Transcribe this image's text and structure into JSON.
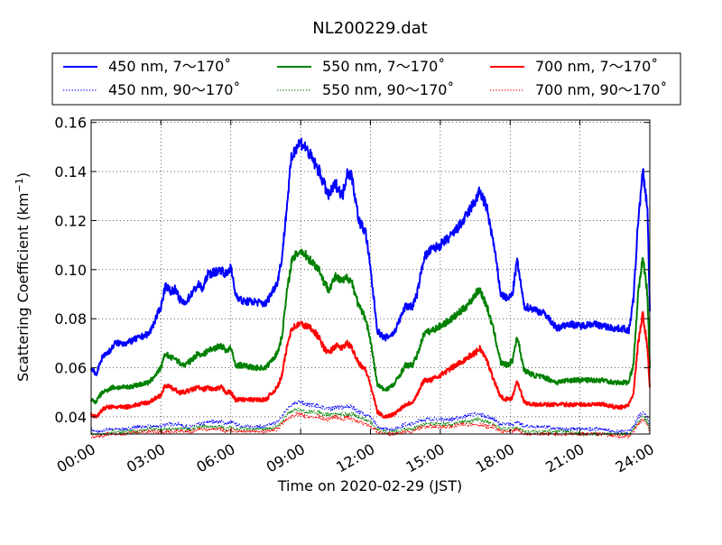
{
  "chart_data": {
    "type": "line",
    "title": "NL200229.dat",
    "xlabel": "Time on 2020-02-29 (JST)",
    "ylabel_main": "Scattering Coefficient (km",
    "ylabel_sup": "−1",
    "ylabel_close": ")",
    "xlim": [
      "00:00",
      "24:00"
    ],
    "ylim": [
      0.033,
      0.161
    ],
    "x_ticks": [
      "00:00",
      "03:00",
      "06:00",
      "09:00",
      "12:00",
      "15:00",
      "18:00",
      "21:00",
      "24:00"
    ],
    "y_ticks": [
      "0.04",
      "0.06",
      "0.08",
      "0.10",
      "0.12",
      "0.14",
      "0.16"
    ],
    "grid": true,
    "legend_position": "top, above plot",
    "x_hours": [
      0.0,
      0.2,
      0.4,
      0.5,
      0.7,
      0.9,
      1.0,
      1.5,
      2.0,
      2.5,
      3.0,
      3.2,
      3.4,
      3.6,
      3.8,
      4.0,
      4.3,
      4.6,
      4.8,
      5.0,
      5.3,
      5.6,
      5.8,
      6.0,
      6.2,
      6.5,
      7.0,
      7.5,
      8.0,
      8.2,
      8.4,
      8.6,
      8.8,
      9.0,
      9.2,
      9.5,
      9.8,
      10.0,
      10.2,
      10.5,
      10.8,
      11.0,
      11.2,
      11.5,
      11.8,
      12.0,
      12.3,
      12.6,
      13.0,
      13.5,
      13.8,
      14.0,
      14.3,
      14.6,
      15.0,
      15.5,
      16.0,
      16.3,
      16.5,
      16.7,
      17.0,
      17.3,
      17.6,
      17.9,
      18.1,
      18.3,
      18.6,
      19.0,
      19.5,
      20.0,
      20.5,
      21.0,
      21.5,
      22.0,
      22.5,
      22.9,
      23.1,
      23.3,
      23.5,
      23.7,
      23.9,
      24.0
    ],
    "series": [
      {
        "name": "450 nm, 7～170˚",
        "color": "#0000ff",
        "style": "solid",
        "values": [
          0.06,
          0.057,
          0.062,
          0.065,
          0.066,
          0.068,
          0.07,
          0.07,
          0.072,
          0.074,
          0.085,
          0.094,
          0.091,
          0.092,
          0.088,
          0.086,
          0.09,
          0.094,
          0.092,
          0.098,
          0.099,
          0.1,
          0.098,
          0.101,
          0.09,
          0.087,
          0.087,
          0.086,
          0.095,
          0.105,
          0.125,
          0.145,
          0.15,
          0.152,
          0.15,
          0.145,
          0.14,
          0.135,
          0.13,
          0.135,
          0.13,
          0.14,
          0.138,
          0.12,
          0.115,
          0.1,
          0.075,
          0.072,
          0.074,
          0.085,
          0.085,
          0.09,
          0.105,
          0.108,
          0.11,
          0.114,
          0.12,
          0.125,
          0.128,
          0.132,
          0.125,
          0.11,
          0.09,
          0.088,
          0.09,
          0.104,
          0.085,
          0.084,
          0.082,
          0.076,
          0.078,
          0.077,
          0.078,
          0.077,
          0.076,
          0.076,
          0.075,
          0.088,
          0.12,
          0.14,
          0.125,
          0.083
        ]
      },
      {
        "name": "550 nm, 7～170˚",
        "color": "#008000",
        "style": "solid",
        "values": [
          0.047,
          0.046,
          0.049,
          0.05,
          0.051,
          0.052,
          0.052,
          0.052,
          0.053,
          0.054,
          0.06,
          0.066,
          0.064,
          0.064,
          0.062,
          0.061,
          0.063,
          0.066,
          0.065,
          0.067,
          0.068,
          0.069,
          0.067,
          0.068,
          0.061,
          0.061,
          0.06,
          0.06,
          0.066,
          0.073,
          0.09,
          0.103,
          0.106,
          0.108,
          0.106,
          0.103,
          0.1,
          0.095,
          0.092,
          0.097,
          0.095,
          0.097,
          0.095,
          0.085,
          0.08,
          0.071,
          0.053,
          0.051,
          0.053,
          0.061,
          0.061,
          0.065,
          0.074,
          0.075,
          0.077,
          0.08,
          0.084,
          0.087,
          0.09,
          0.092,
          0.085,
          0.075,
          0.062,
          0.061,
          0.063,
          0.073,
          0.059,
          0.057,
          0.056,
          0.054,
          0.055,
          0.055,
          0.055,
          0.055,
          0.054,
          0.054,
          0.054,
          0.062,
          0.09,
          0.105,
          0.09,
          0.06
        ]
      },
      {
        "name": "700 nm, 7～170˚",
        "color": "#ff0000",
        "style": "solid",
        "values": [
          0.041,
          0.04,
          0.042,
          0.043,
          0.044,
          0.044,
          0.044,
          0.044,
          0.045,
          0.046,
          0.049,
          0.053,
          0.052,
          0.051,
          0.05,
          0.05,
          0.051,
          0.052,
          0.051,
          0.052,
          0.051,
          0.052,
          0.05,
          0.05,
          0.047,
          0.047,
          0.047,
          0.047,
          0.052,
          0.057,
          0.068,
          0.076,
          0.077,
          0.078,
          0.077,
          0.076,
          0.072,
          0.068,
          0.066,
          0.069,
          0.068,
          0.07,
          0.068,
          0.062,
          0.059,
          0.053,
          0.042,
          0.04,
          0.041,
          0.045,
          0.046,
          0.049,
          0.055,
          0.055,
          0.057,
          0.06,
          0.063,
          0.065,
          0.066,
          0.068,
          0.063,
          0.055,
          0.048,
          0.047,
          0.048,
          0.055,
          0.046,
          0.045,
          0.045,
          0.045,
          0.045,
          0.045,
          0.045,
          0.045,
          0.044,
          0.044,
          0.045,
          0.05,
          0.07,
          0.082,
          0.068,
          0.052
        ]
      },
      {
        "name": "450 nm, 90～170˚",
        "color": "#0000ff",
        "style": "dotted",
        "values": [
          0.035,
          0.034,
          0.034,
          0.034,
          0.035,
          0.035,
          0.035,
          0.035,
          0.036,
          0.036,
          0.036,
          0.037,
          0.037,
          0.037,
          0.037,
          0.036,
          0.036,
          0.037,
          0.037,
          0.038,
          0.038,
          0.038,
          0.037,
          0.038,
          0.037,
          0.036,
          0.036,
          0.036,
          0.038,
          0.04,
          0.043,
          0.045,
          0.046,
          0.046,
          0.045,
          0.045,
          0.044,
          0.044,
          0.043,
          0.044,
          0.044,
          0.044,
          0.044,
          0.042,
          0.041,
          0.04,
          0.036,
          0.035,
          0.035,
          0.037,
          0.037,
          0.038,
          0.039,
          0.039,
          0.039,
          0.039,
          0.04,
          0.041,
          0.041,
          0.041,
          0.04,
          0.039,
          0.037,
          0.037,
          0.037,
          0.038,
          0.036,
          0.036,
          0.036,
          0.035,
          0.035,
          0.035,
          0.035,
          0.035,
          0.034,
          0.034,
          0.034,
          0.036,
          0.04,
          0.042,
          0.04,
          0.036
        ]
      },
      {
        "name": "550 nm, 90～170˚",
        "color": "#008000",
        "style": "dotted",
        "values": [
          0.033,
          0.033,
          0.033,
          0.033,
          0.033,
          0.034,
          0.034,
          0.034,
          0.034,
          0.035,
          0.035,
          0.035,
          0.035,
          0.035,
          0.035,
          0.035,
          0.035,
          0.036,
          0.036,
          0.036,
          0.036,
          0.036,
          0.035,
          0.036,
          0.035,
          0.035,
          0.035,
          0.035,
          0.036,
          0.038,
          0.041,
          0.042,
          0.043,
          0.043,
          0.042,
          0.042,
          0.042,
          0.041,
          0.041,
          0.041,
          0.041,
          0.041,
          0.041,
          0.04,
          0.039,
          0.038,
          0.035,
          0.034,
          0.034,
          0.035,
          0.035,
          0.036,
          0.037,
          0.037,
          0.037,
          0.037,
          0.038,
          0.038,
          0.039,
          0.039,
          0.038,
          0.037,
          0.035,
          0.035,
          0.035,
          0.036,
          0.034,
          0.034,
          0.034,
          0.034,
          0.034,
          0.033,
          0.033,
          0.033,
          0.033,
          0.033,
          0.033,
          0.035,
          0.038,
          0.04,
          0.038,
          0.034
        ]
      },
      {
        "name": "700 nm, 90～170˚",
        "color": "#ff0000",
        "style": "dotted",
        "values": [
          0.032,
          0.032,
          0.032,
          0.032,
          0.033,
          0.033,
          0.033,
          0.033,
          0.034,
          0.034,
          0.034,
          0.034,
          0.034,
          0.034,
          0.034,
          0.034,
          0.034,
          0.035,
          0.035,
          0.035,
          0.035,
          0.035,
          0.034,
          0.035,
          0.034,
          0.034,
          0.034,
          0.034,
          0.035,
          0.037,
          0.039,
          0.04,
          0.041,
          0.041,
          0.04,
          0.04,
          0.04,
          0.039,
          0.039,
          0.04,
          0.039,
          0.04,
          0.039,
          0.038,
          0.037,
          0.036,
          0.034,
          0.033,
          0.033,
          0.034,
          0.034,
          0.035,
          0.036,
          0.036,
          0.036,
          0.036,
          0.037,
          0.037,
          0.037,
          0.037,
          0.036,
          0.036,
          0.034,
          0.034,
          0.034,
          0.035,
          0.033,
          0.033,
          0.033,
          0.033,
          0.033,
          0.033,
          0.033,
          0.033,
          0.032,
          0.032,
          0.032,
          0.034,
          0.037,
          0.039,
          0.037,
          0.033
        ]
      }
    ],
    "legend_order": [
      0,
      1,
      2,
      3,
      4,
      5
    ]
  }
}
